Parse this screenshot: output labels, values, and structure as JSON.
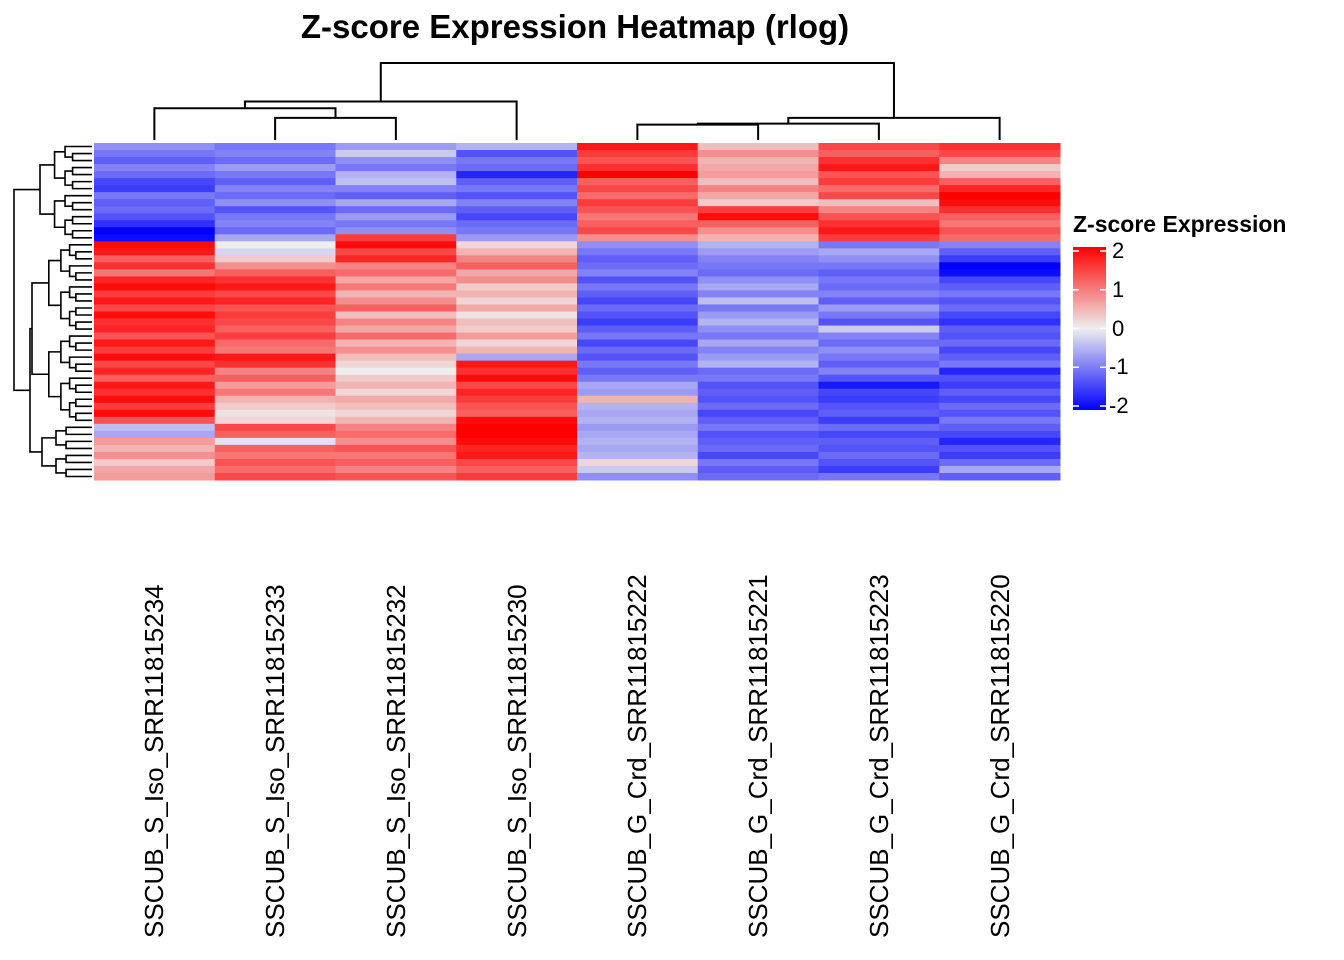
{
  "chart_data": {
    "type": "heatmap",
    "title": "Z-score Expression Heatmap (rlog)",
    "columns": [
      "SSCUB_S_Iso_SRR11815234",
      "SSCUB_S_Iso_SRR11815233",
      "SSCUB_S_Iso_SRR11815232",
      "SSCUB_S_Iso_SRR11815230",
      "SSCUB_G_Crd_SRR11815222",
      "SSCUB_G_Crd_SRR11815221",
      "SSCUB_G_Crd_SRR11815223",
      "SSCUB_G_Crd_SRR11815220"
    ],
    "legend": {
      "title": "Z-score Expression",
      "ticks": [
        "2",
        "1",
        "0",
        "-1",
        "-2"
      ],
      "range": [
        -2,
        2
      ],
      "colors": {
        "low": "#0000FF",
        "mid": "#EEEEEE",
        "high": "#FF0000"
      }
    },
    "column_dendrogram": {
      "merges": [
        {
          "a": "c1",
          "b": "c2",
          "height": 0.23
        },
        {
          "a": "c0",
          "b": "m0",
          "height": 0.33
        },
        {
          "a": "m1",
          "b": "c3",
          "height": 0.4
        },
        {
          "a": "c4",
          "b": "c5",
          "height": 0.16
        },
        {
          "a": "m3",
          "b": "c6",
          "height": 0.17
        },
        {
          "a": "m4",
          "b": "c7",
          "height": 0.23
        },
        {
          "a": "m2",
          "b": "m5",
          "height": 0.8
        }
      ],
      "max_height": 0.8
    },
    "row_clusters": [
      14,
      26,
      8
    ],
    "values": [
      [
        -0.8,
        -1.0,
        -0.7,
        -0.5,
        1.8,
        0.4,
        1.4,
        1.6
      ],
      [
        -1.0,
        -0.9,
        -0.3,
        -1.3,
        1.5,
        0.8,
        1.2,
        1.4
      ],
      [
        -1.2,
        -1.1,
        -0.8,
        -1.0,
        1.3,
        0.5,
        1.6,
        0.9
      ],
      [
        -0.9,
        -0.7,
        -1.0,
        -1.1,
        1.6,
        0.6,
        1.8,
        0.3
      ],
      [
        -1.1,
        -1.0,
        -0.5,
        -1.7,
        2.0,
        0.7,
        1.3,
        0.5
      ],
      [
        -1.4,
        -1.2,
        -0.4,
        -1.2,
        1.2,
        0.4,
        1.5,
        1.2
      ],
      [
        -1.5,
        -0.9,
        -0.9,
        -1.0,
        1.4,
        0.9,
        1.1,
        1.7
      ],
      [
        -1.0,
        -1.1,
        -1.2,
        -1.3,
        1.1,
        0.6,
        1.4,
        2.0
      ],
      [
        -1.2,
        -0.8,
        -0.6,
        -0.9,
        1.5,
        0.3,
        0.4,
        1.9
      ],
      [
        -1.1,
        -1.3,
        -1.1,
        -1.2,
        1.3,
        1.5,
        0.9,
        1.6
      ],
      [
        -1.3,
        -1.0,
        -0.7,
        -1.4,
        1.0,
        1.9,
        1.3,
        1.2
      ],
      [
        -1.6,
        -0.9,
        -1.0,
        -1.1,
        1.2,
        1.2,
        1.6,
        1.0
      ],
      [
        -2.0,
        -1.1,
        -0.8,
        -1.0,
        1.4,
        0.8,
        1.8,
        1.3
      ],
      [
        -1.9,
        -0.6,
        1.5,
        -0.7,
        0.8,
        0.5,
        1.5,
        1.1
      ],
      [
        1.9,
        0.0,
        1.9,
        0.2,
        -0.8,
        -0.5,
        -1.0,
        -0.9
      ],
      [
        1.8,
        -0.2,
        1.4,
        0.5,
        -1.0,
        -0.7,
        -0.6,
        -1.2
      ],
      [
        1.2,
        0.3,
        1.7,
        0.9,
        -1.2,
        -0.9,
        -0.8,
        -1.5
      ],
      [
        1.6,
        0.8,
        0.9,
        1.2,
        -1.1,
        -1.0,
        -1.0,
        -2.0
      ],
      [
        1.0,
        1.2,
        1.1,
        0.6,
        -0.9,
        -1.1,
        -1.2,
        -1.9
      ],
      [
        1.7,
        1.6,
        0.6,
        0.8,
        -1.3,
        -0.8,
        -1.0,
        -1.4
      ],
      [
        1.9,
        1.8,
        1.0,
        0.3,
        -1.0,
        -0.6,
        -1.1,
        -1.2
      ],
      [
        1.5,
        1.4,
        0.5,
        0.5,
        -1.2,
        -0.9,
        -0.9,
        -1.0
      ],
      [
        1.8,
        1.7,
        0.8,
        0.2,
        -1.4,
        -0.4,
        -1.2,
        -1.3
      ],
      [
        1.4,
        1.3,
        1.2,
        0.6,
        -1.1,
        -1.0,
        -0.7,
        -1.1
      ],
      [
        1.9,
        1.5,
        0.4,
        0.1,
        -1.3,
        -0.7,
        -1.0,
        -1.4
      ],
      [
        1.6,
        1.4,
        0.9,
        0.4,
        -1.5,
        -0.5,
        -1.3,
        -1.6
      ],
      [
        1.7,
        1.2,
        0.6,
        0.3,
        -1.2,
        -0.8,
        -0.3,
        -1.2
      ],
      [
        1.3,
        1.5,
        1.1,
        0.7,
        -1.0,
        -1.0,
        -0.9,
        -1.3
      ],
      [
        1.8,
        1.1,
        0.5,
        0.2,
        -1.4,
        -0.6,
        -1.1,
        -1.1
      ],
      [
        1.5,
        1.0,
        0.8,
        0.5,
        -1.1,
        -0.9,
        -0.8,
        -1.4
      ],
      [
        1.9,
        1.8,
        0.4,
        -0.6,
        -1.3,
        -0.7,
        -1.0,
        -1.2
      ],
      [
        1.4,
        1.6,
        0.2,
        1.8,
        -1.0,
        -0.5,
        -1.2,
        -1.0
      ],
      [
        1.7,
        0.9,
        0.0,
        1.6,
        -1.2,
        -1.1,
        -0.9,
        -1.7
      ],
      [
        1.2,
        1.2,
        0.3,
        1.9,
        -1.0,
        -1.0,
        -1.3,
        -1.3
      ],
      [
        1.8,
        0.7,
        0.5,
        1.4,
        -0.6,
        -1.3,
        -1.8,
        -1.5
      ],
      [
        1.6,
        1.0,
        0.2,
        1.7,
        -0.7,
        -1.2,
        -1.4,
        -1.2
      ],
      [
        1.9,
        0.5,
        0.6,
        1.5,
        0.5,
        -1.3,
        -1.5,
        -1.4
      ],
      [
        1.5,
        0.3,
        0.4,
        1.3,
        -0.5,
        -1.1,
        -1.3,
        -1.1
      ],
      [
        1.9,
        0.1,
        0.2,
        1.2,
        -0.6,
        -1.4,
        -1.2,
        -1.3
      ],
      [
        1.3,
        0.2,
        0.5,
        1.9,
        -0.5,
        -1.2,
        -1.5,
        -1.0
      ],
      [
        -0.4,
        1.4,
        0.9,
        2.0,
        -0.7,
        -1.0,
        -1.1,
        -1.2
      ],
      [
        -0.6,
        1.2,
        1.1,
        2.0,
        -0.6,
        -1.3,
        -1.4,
        -1.4
      ],
      [
        0.7,
        -0.1,
        0.8,
        1.9,
        -0.5,
        -1.2,
        -1.2,
        -1.7
      ],
      [
        0.5,
        1.2,
        1.3,
        1.7,
        -0.6,
        -1.1,
        -1.3,
        -1.3
      ],
      [
        0.8,
        1.0,
        1.0,
        1.8,
        -0.5,
        -1.4,
        -1.1,
        -1.5
      ],
      [
        0.3,
        1.3,
        1.2,
        1.4,
        0.2,
        -1.0,
        -1.3,
        -1.1
      ],
      [
        0.6,
        1.1,
        0.9,
        1.2,
        -0.3,
        -1.2,
        -1.5,
        -0.6
      ],
      [
        0.7,
        1.4,
        1.3,
        1.5,
        -0.8,
        -1.1,
        -1.0,
        -1.2
      ]
    ]
  }
}
